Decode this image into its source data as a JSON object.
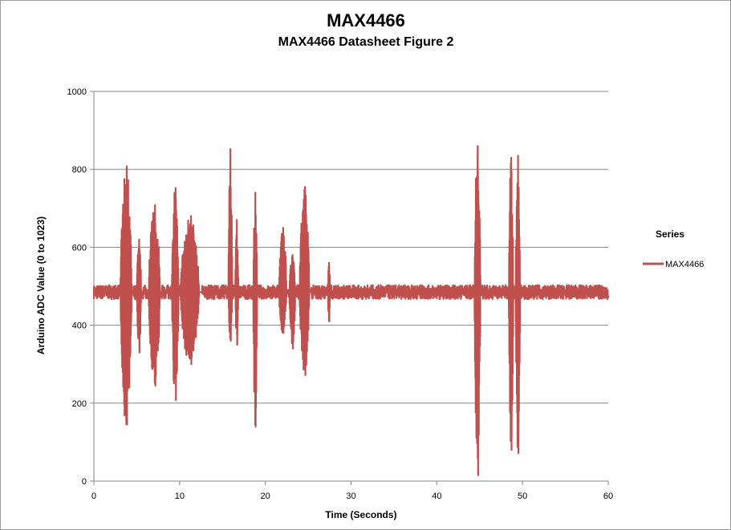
{
  "chart_data": {
    "type": "line",
    "title": "MAX4466",
    "subtitle": "MAX4466 Datasheet  Figure 2",
    "xlabel": "Time (Seconds)",
    "ylabel": "Arduino ADC Value (0 to 1023)",
    "xlim": [
      0,
      60
    ],
    "ylim": [
      0,
      1000
    ],
    "x_ticks": [
      0,
      10,
      20,
      30,
      40,
      50,
      60
    ],
    "y_ticks": [
      0,
      200,
      400,
      600,
      800,
      1000
    ],
    "grid": "horizontal",
    "legend": {
      "title": "Series",
      "position": "right"
    },
    "baseline": 485,
    "series": [
      {
        "name": "MAX4466",
        "color": "#c0504d",
        "baseline_noise": 18,
        "bursts": [
          {
            "start": 3.1,
            "end": 4.6,
            "max": 808,
            "min": 145
          },
          {
            "start": 5.0,
            "end": 5.6,
            "max": 620,
            "min": 330
          },
          {
            "start": 6.4,
            "end": 7.9,
            "max": 708,
            "min": 245
          },
          {
            "start": 9.1,
            "end": 10.0,
            "max": 752,
            "min": 208
          },
          {
            "start": 10.1,
            "end": 12.6,
            "max": 680,
            "min": 300
          },
          {
            "start": 15.7,
            "end": 16.2,
            "max": 852,
            "min": 360
          },
          {
            "start": 16.5,
            "end": 16.9,
            "max": 670,
            "min": 350
          },
          {
            "start": 18.6,
            "end": 19.1,
            "max": 740,
            "min": 140
          },
          {
            "start": 21.6,
            "end": 22.6,
            "max": 650,
            "min": 380
          },
          {
            "start": 22.8,
            "end": 23.6,
            "max": 580,
            "min": 340
          },
          {
            "start": 24.0,
            "end": 25.3,
            "max": 755,
            "min": 272
          },
          {
            "start": 27.3,
            "end": 27.6,
            "max": 560,
            "min": 410
          },
          {
            "start": 44.4,
            "end": 45.2,
            "max": 860,
            "min": 15
          },
          {
            "start": 48.4,
            "end": 49.0,
            "max": 830,
            "min": 80
          },
          {
            "start": 49.2,
            "end": 49.8,
            "max": 835,
            "min": 72
          }
        ]
      }
    ]
  }
}
